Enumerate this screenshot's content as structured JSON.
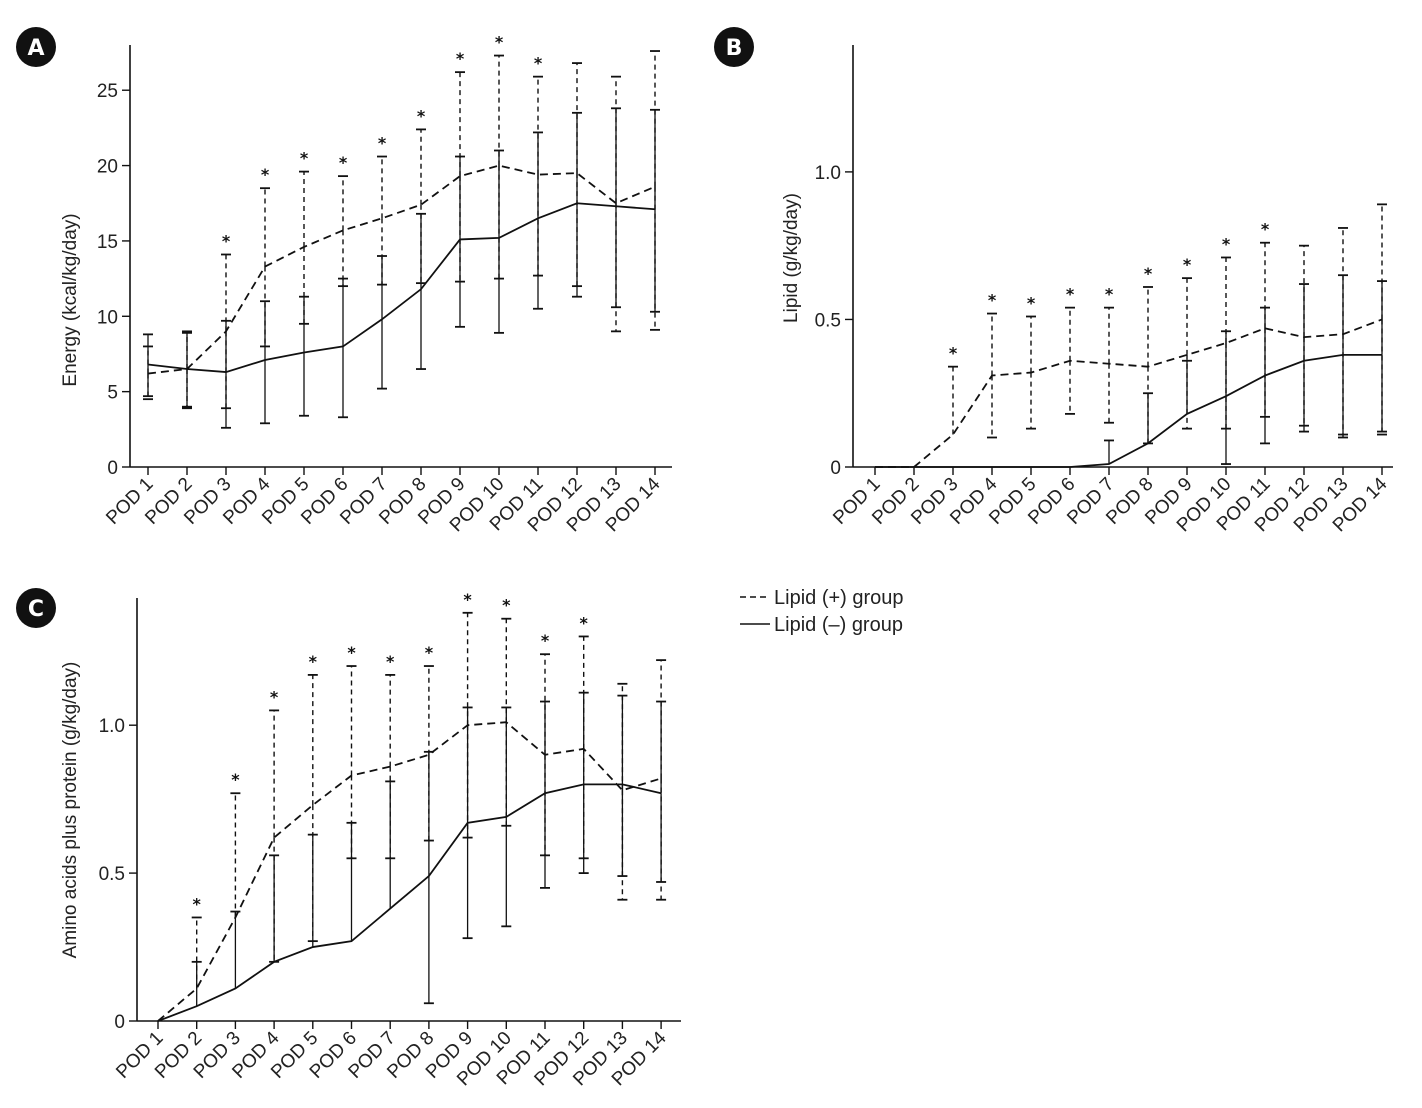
{
  "legend": {
    "lipid_plus": "Lipid (+) group",
    "lipid_minus": "Lipid (–) group"
  },
  "colors": {
    "line": "#111111",
    "badge": "#111111"
  },
  "chart_data": [
    {
      "id": "A",
      "panel_label": "A",
      "type": "line",
      "ylabel": "Energy (kcal/kg/day)",
      "ylim": [
        0,
        28
      ],
      "yticks": [
        0,
        5,
        10,
        15,
        20,
        25
      ],
      "ytick_labels": [
        "0",
        "5",
        "10",
        "15",
        "20",
        "25"
      ],
      "categories": [
        "POD 1",
        "POD 2",
        "POD 3",
        "POD 4",
        "POD 5",
        "POD 6",
        "POD 7",
        "POD 8",
        "POD 9",
        "POD 10",
        "POD 11",
        "POD 12",
        "POD 13",
        "POD 14"
      ],
      "significance": [
        false,
        false,
        true,
        true,
        true,
        true,
        true,
        true,
        true,
        true,
        true,
        false,
        false,
        false
      ],
      "star_label": "*",
      "series": [
        {
          "name": "Lipid (+) group",
          "style": "dashed",
          "values": [
            6.2,
            6.5,
            9.0,
            13.3,
            14.6,
            15.7,
            16.5,
            17.4,
            19.3,
            20.0,
            19.4,
            19.5,
            17.5,
            18.6
          ],
          "upper": [
            8.0,
            8.9,
            14.1,
            18.5,
            19.6,
            19.3,
            20.6,
            22.4,
            26.2,
            27.3,
            25.9,
            26.8,
            25.9,
            27.6
          ],
          "lower": [
            4.5,
            4.0,
            3.9,
            8.0,
            9.5,
            12.0,
            12.1,
            12.2,
            12.3,
            12.5,
            12.7,
            12.0,
            9.0,
            9.1
          ]
        },
        {
          "name": "Lipid (–) group",
          "style": "solid",
          "values": [
            6.8,
            6.5,
            6.3,
            7.1,
            7.6,
            8.0,
            9.8,
            11.8,
            15.1,
            15.2,
            16.5,
            17.5,
            17.3,
            17.1
          ],
          "upper": [
            8.8,
            9.0,
            9.7,
            11.0,
            11.3,
            12.5,
            14.0,
            16.8,
            20.6,
            21.0,
            22.2,
            23.5,
            23.8,
            23.7
          ],
          "lower": [
            4.7,
            3.9,
            2.6,
            2.9,
            3.4,
            3.3,
            5.2,
            6.5,
            9.3,
            8.9,
            10.5,
            11.3,
            10.6,
            10.3
          ]
        }
      ]
    },
    {
      "id": "B",
      "panel_label": "B",
      "type": "line",
      "ylabel": "Lipid (g/kg/day)",
      "ylim": [
        0,
        1.43
      ],
      "yticks": [
        0,
        0.5,
        1.0
      ],
      "ytick_labels": [
        "0",
        "0.5",
        "1.0"
      ],
      "categories": [
        "POD 1",
        "POD 2",
        "POD 3",
        "POD 4",
        "POD 5",
        "POD 6",
        "POD 7",
        "POD 8",
        "POD 9",
        "POD 10",
        "POD 11",
        "POD 12",
        "POD 13",
        "POD 14"
      ],
      "significance": [
        false,
        false,
        true,
        true,
        true,
        true,
        true,
        true,
        true,
        true,
        true,
        false,
        false,
        false
      ],
      "star_label": "*",
      "series": [
        {
          "name": "Lipid (+) group",
          "style": "dashed",
          "values": [
            0,
            0,
            0.11,
            0.31,
            0.32,
            0.36,
            0.35,
            0.34,
            0.38,
            0.42,
            0.47,
            0.44,
            0.45,
            0.5
          ],
          "upper": [
            null,
            null,
            0.34,
            0.52,
            0.51,
            0.54,
            0.54,
            0.61,
            0.64,
            0.71,
            0.76,
            0.75,
            0.81,
            0.89
          ],
          "lower": [
            null,
            null,
            null,
            0.1,
            0.13,
            0.18,
            0.15,
            0.08,
            0.13,
            0.13,
            0.17,
            0.14,
            0.1,
            0.11
          ]
        },
        {
          "name": "Lipid (–) group",
          "style": "solid",
          "values": [
            0,
            0,
            0,
            0,
            0,
            0,
            0.01,
            0.08,
            0.18,
            0.24,
            0.31,
            0.36,
            0.38,
            0.38
          ],
          "upper": [
            null,
            null,
            null,
            null,
            null,
            null,
            0.09,
            0.25,
            0.36,
            0.46,
            0.54,
            0.62,
            0.65,
            0.63
          ],
          "lower": [
            null,
            null,
            null,
            null,
            null,
            null,
            null,
            null,
            null,
            0.01,
            0.08,
            0.12,
            0.11,
            0.12
          ]
        }
      ]
    },
    {
      "id": "C",
      "panel_label": "C",
      "type": "line",
      "ylabel": "Amino acids plus protein (g/kg/day)",
      "ylim": [
        0,
        1.43
      ],
      "yticks": [
        0,
        0.5,
        1.0
      ],
      "ytick_labels": [
        "0",
        "0.5",
        "1.0"
      ],
      "categories": [
        "POD 1",
        "POD 2",
        "POD 3",
        "POD 4",
        "POD 5",
        "POD 6",
        "POD 7",
        "POD 8",
        "POD 9",
        "POD 10",
        "POD 11",
        "POD 12",
        "POD 13",
        "POD 14"
      ],
      "significance": [
        false,
        true,
        true,
        true,
        true,
        true,
        true,
        true,
        true,
        true,
        true,
        true,
        false,
        false
      ],
      "star_label": "*",
      "series": [
        {
          "name": "Lipid (+) group",
          "style": "dashed",
          "values": [
            0,
            0.11,
            0.35,
            0.62,
            0.73,
            0.83,
            0.86,
            0.9,
            1.0,
            1.01,
            0.9,
            0.92,
            0.78,
            0.82
          ],
          "upper": [
            null,
            0.35,
            0.77,
            1.05,
            1.17,
            1.2,
            1.17,
            1.2,
            1.38,
            1.36,
            1.24,
            1.3,
            1.14,
            1.22
          ],
          "lower": [
            null,
            null,
            null,
            0.2,
            0.27,
            0.55,
            0.55,
            0.61,
            0.62,
            0.66,
            0.56,
            0.55,
            0.41,
            0.41
          ]
        },
        {
          "name": "Lipid (–) group",
          "style": "solid",
          "values": [
            0,
            0.05,
            0.11,
            0.2,
            0.25,
            0.27,
            0.38,
            0.49,
            0.67,
            0.69,
            0.77,
            0.8,
            0.8,
            0.77
          ],
          "upper": [
            null,
            0.2,
            0.37,
            0.56,
            0.63,
            0.67,
            0.81,
            0.91,
            1.06,
            1.06,
            1.08,
            1.11,
            1.1,
            1.08
          ],
          "lower": [
            null,
            null,
            null,
            null,
            null,
            null,
            null,
            0.06,
            0.28,
            0.32,
            0.45,
            0.5,
            0.49,
            0.47
          ]
        }
      ]
    }
  ]
}
